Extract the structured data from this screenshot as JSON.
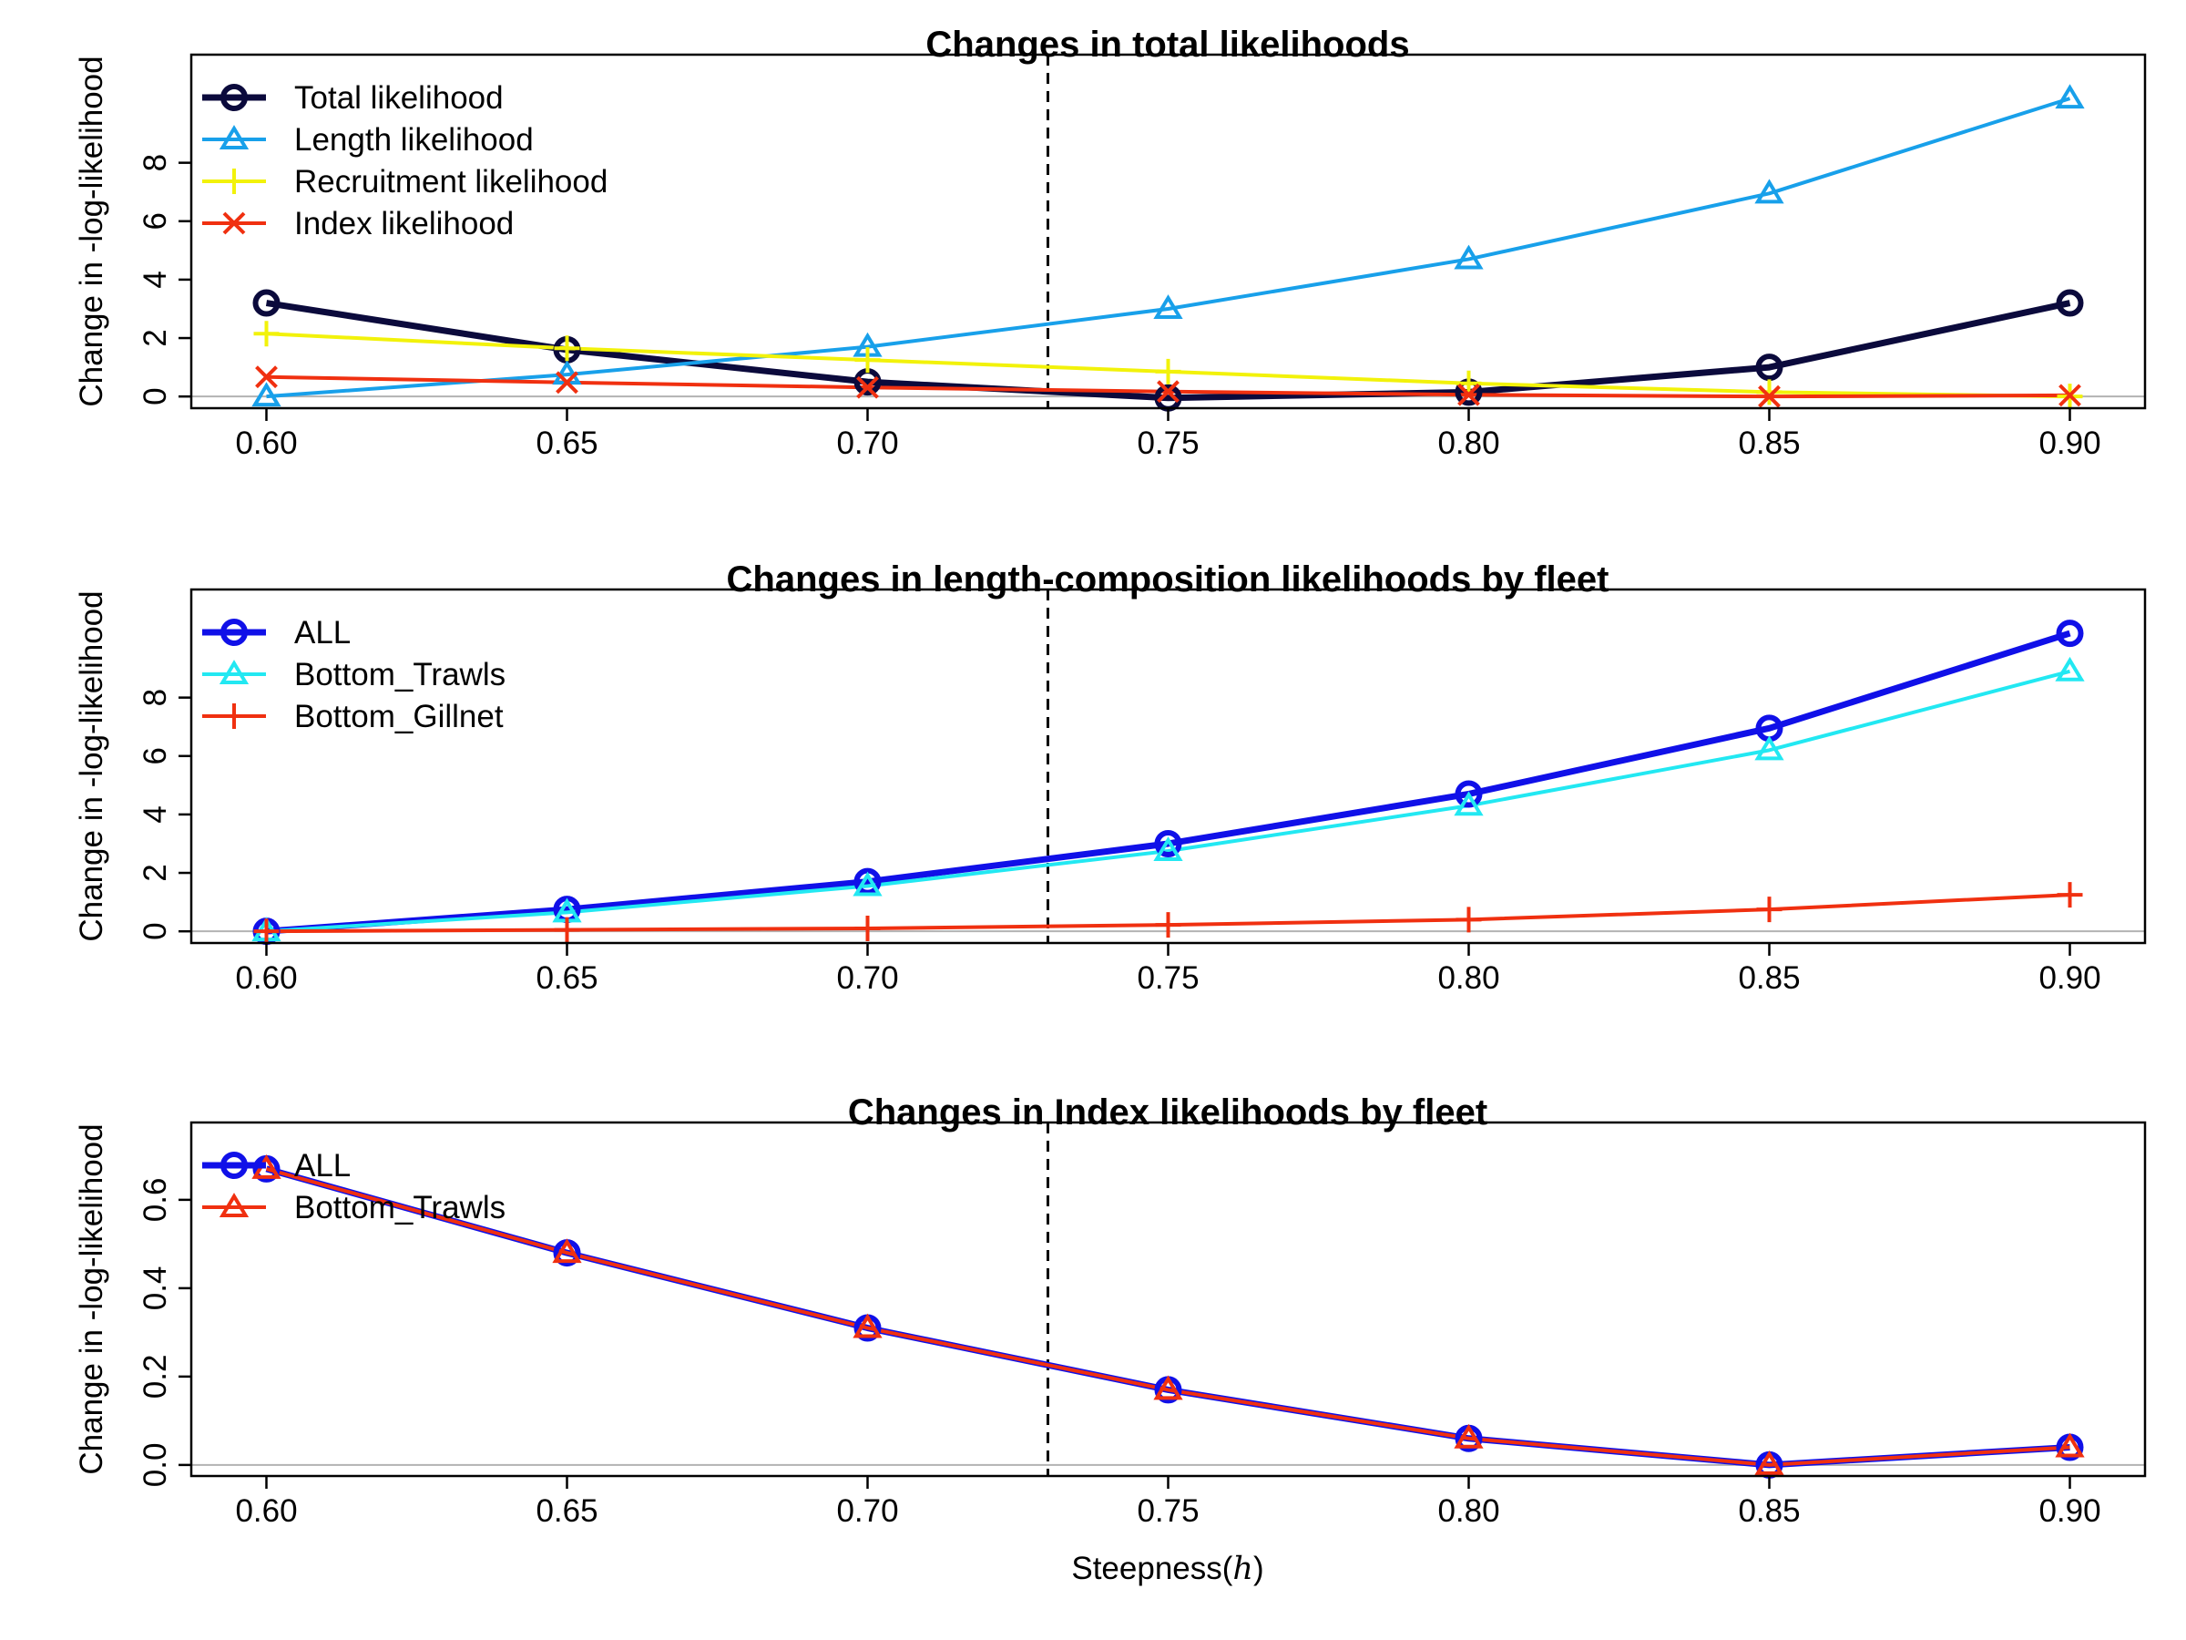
{
  "figure": {
    "xlabel_prefix": "Steepness",
    "xlabel_symbol": "h",
    "reference_line_x": 0.73
  },
  "chart_data": [
    {
      "type": "line",
      "title": "Changes in total likelihoods",
      "xlabel": "",
      "ylabel": "Change in -log-likelihood",
      "x": [
        0.6,
        0.65,
        0.7,
        0.75,
        0.8,
        0.85,
        0.9
      ],
      "x_tick_labels": [
        "0.60",
        "0.65",
        "0.70",
        "0.75",
        "0.80",
        "0.85",
        "0.90"
      ],
      "xlim": [
        0.5875,
        0.9125
      ],
      "ylim": [
        -0.4,
        11.7
      ],
      "y_ticks": [
        0,
        2,
        4,
        6,
        8
      ],
      "y_tick_labels": [
        "0",
        "2",
        "4",
        "6",
        "8"
      ],
      "grid": false,
      "legend_position": "top-left",
      "series": [
        {
          "name": "Total likelihood",
          "color": "#0b0a3c",
          "marker": "circle",
          "width": "thick",
          "values": [
            3.2,
            1.6,
            0.5,
            -0.05,
            0.15,
            1.0,
            3.2
          ]
        },
        {
          "name": "Length likelihood",
          "color": "#18a0ea",
          "marker": "triangle",
          "width": "normal",
          "values": [
            0.0,
            0.75,
            1.7,
            3.0,
            4.7,
            6.95,
            10.2
          ]
        },
        {
          "name": "Recruitment likelihood",
          "color": "#f2f20a",
          "marker": "plus",
          "width": "normal",
          "values": [
            2.15,
            1.65,
            1.25,
            0.85,
            0.45,
            0.15,
            0.0
          ]
        },
        {
          "name": "Index likelihood",
          "color": "#f03010",
          "marker": "cross",
          "width": "normal",
          "values": [
            0.67,
            0.48,
            0.31,
            0.17,
            0.06,
            0.0,
            0.04
          ]
        }
      ]
    },
    {
      "type": "line",
      "title": "Changes in length-composition likelihoods by fleet",
      "xlabel": "",
      "ylabel": "Change in -log-likelihood",
      "x": [
        0.6,
        0.65,
        0.7,
        0.75,
        0.8,
        0.85,
        0.9
      ],
      "x_tick_labels": [
        "0.60",
        "0.65",
        "0.70",
        "0.75",
        "0.80",
        "0.85",
        "0.90"
      ],
      "xlim": [
        0.5875,
        0.9125
      ],
      "ylim": [
        -0.4,
        11.7
      ],
      "y_ticks": [
        0,
        2,
        4,
        6,
        8
      ],
      "y_tick_labels": [
        "0",
        "2",
        "4",
        "6",
        "8"
      ],
      "grid": false,
      "legend_position": "top-left",
      "series": [
        {
          "name": "ALL",
          "color": "#1010e8",
          "marker": "circle",
          "width": "thick",
          "values": [
            0.0,
            0.75,
            1.7,
            3.0,
            4.7,
            6.95,
            10.2
          ]
        },
        {
          "name": "Bottom_Trawls",
          "color": "#22e8f2",
          "marker": "triangle",
          "width": "normal",
          "values": [
            0.0,
            0.65,
            1.55,
            2.75,
            4.3,
            6.2,
            8.9
          ]
        },
        {
          "name": "Bottom_Gillnet",
          "color": "#f03010",
          "marker": "plus",
          "width": "normal",
          "values": [
            0.0,
            0.05,
            0.1,
            0.22,
            0.4,
            0.75,
            1.25
          ]
        }
      ]
    },
    {
      "type": "line",
      "title": "Changes in Index likelihoods by fleet",
      "xlabel": "Steepness(h)",
      "ylabel": "Change in -log-likelihood",
      "x": [
        0.6,
        0.65,
        0.7,
        0.75,
        0.8,
        0.85,
        0.9
      ],
      "x_tick_labels": [
        "0.60",
        "0.65",
        "0.70",
        "0.75",
        "0.80",
        "0.85",
        "0.90"
      ],
      "xlim": [
        0.5875,
        0.9125
      ],
      "ylim": [
        -0.025,
        0.775
      ],
      "y_ticks": [
        0.0,
        0.2,
        0.4,
        0.6
      ],
      "y_tick_labels": [
        "0.0",
        "0.2",
        "0.4",
        "0.6"
      ],
      "grid": false,
      "legend_position": "top-left",
      "series": [
        {
          "name": "ALL",
          "color": "#1010e8",
          "marker": "circle",
          "width": "thick",
          "values": [
            0.67,
            0.48,
            0.31,
            0.17,
            0.06,
            0.0,
            0.04
          ]
        },
        {
          "name": "Bottom_Trawls",
          "color": "#f03010",
          "marker": "triangle",
          "width": "normal",
          "values": [
            0.67,
            0.48,
            0.31,
            0.17,
            0.06,
            0.0,
            0.04
          ]
        }
      ]
    }
  ]
}
